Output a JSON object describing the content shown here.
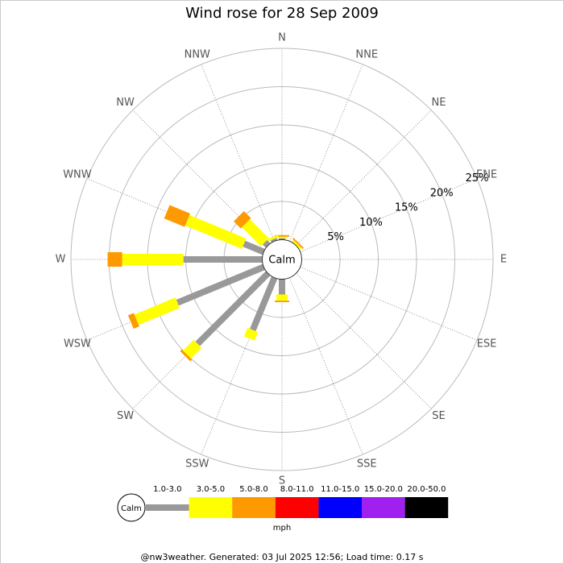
{
  "chart_data": {
    "type": "windrose",
    "title": "Wind rose for 28 Sep 2009",
    "center_label": "Calm",
    "legend_calm": "Calm",
    "unit": "mph",
    "footer": "@nw3weather. Generated: 03 Jul 2025 12:56; Load time: 0.17 s",
    "categories": [
      "N",
      "NNE",
      "NE",
      "ENE",
      "E",
      "ESE",
      "SE",
      "SSE",
      "S",
      "SSW",
      "SW",
      "WSW",
      "W",
      "WNW",
      "NW",
      "NNW"
    ],
    "rlim": [
      0,
      25
    ],
    "rticks": [
      {
        "value": 5,
        "label": "5%"
      },
      {
        "value": 10,
        "label": "10%"
      },
      {
        "value": 15,
        "label": "15%"
      },
      {
        "value": 20,
        "label": "20%"
      },
      {
        "value": 25,
        "label": "25%"
      }
    ],
    "series": [
      {
        "name": "1.0-3.0",
        "color": "#999999",
        "values": [
          0.2,
          0,
          0,
          0,
          0,
          0,
          0,
          0,
          2.0,
          7.4,
          13.0,
          12.2,
          10.3,
          2.8,
          0.6,
          0.3
        ]
      },
      {
        "name": "3.0-5.0",
        "color": "#ffff00",
        "values": [
          0.2,
          0,
          0.3,
          0,
          0,
          0,
          0,
          0,
          0.8,
          1.2,
          2.0,
          5.8,
          8.0,
          8.0,
          3.5,
          0.3
        ]
      },
      {
        "name": "5.0-8.0",
        "color": "#ff9900",
        "values": [
          0.2,
          0,
          0.2,
          0,
          0,
          0,
          0,
          0,
          0.2,
          0,
          0.3,
          0.8,
          1.9,
          2.9,
          1.3,
          0
        ]
      },
      {
        "name": "8.0-11.0",
        "color": "#ff0000",
        "values": [
          0,
          0,
          0,
          0,
          0,
          0,
          0,
          0,
          0,
          0,
          0,
          0,
          0,
          0,
          0,
          0
        ]
      },
      {
        "name": "11.0-15.0",
        "color": "#0000ff",
        "values": [
          0,
          0,
          0,
          0,
          0,
          0,
          0,
          0,
          0,
          0,
          0,
          0,
          0,
          0,
          0,
          0
        ]
      },
      {
        "name": "15.0-20.0",
        "color": "#a020f0",
        "values": [
          0,
          0,
          0,
          0,
          0,
          0,
          0,
          0,
          0,
          0,
          0,
          0,
          0,
          0,
          0,
          0
        ]
      },
      {
        "name": "20.0-50.0",
        "color": "#000000",
        "values": [
          0,
          0,
          0,
          0,
          0,
          0,
          0,
          0,
          0,
          0,
          0,
          0,
          0,
          0,
          0,
          0
        ]
      }
    ]
  }
}
